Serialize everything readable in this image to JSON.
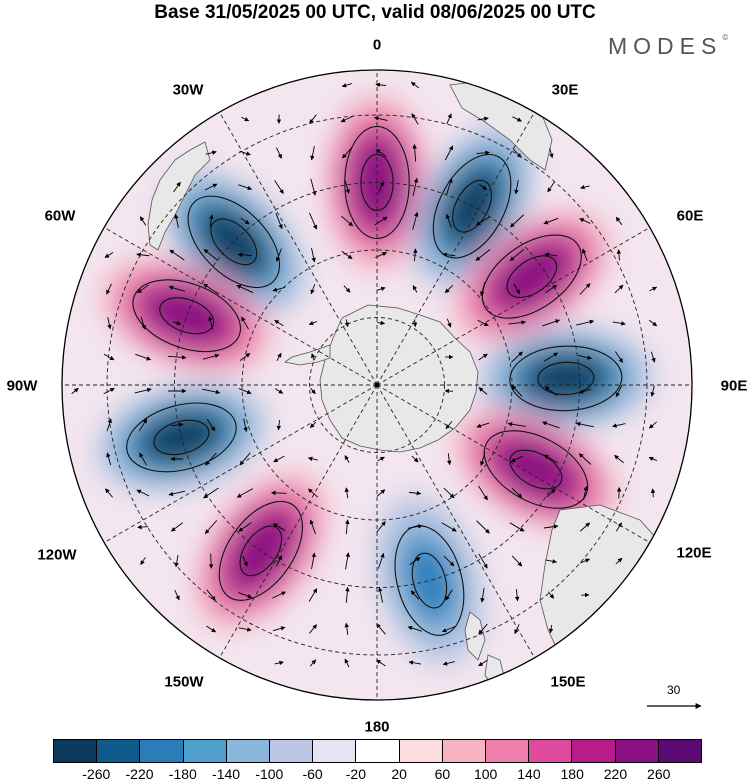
{
  "title": "Base 31/05/2025 00 UTC, valid 08/06/2025 00 UTC",
  "logo": {
    "text": "MODES",
    "mark": "©"
  },
  "map": {
    "projection": "south-polar-stereographic",
    "longitude_labels": {
      "lon_0": "0",
      "lon_30e": "30E",
      "lon_60e": "60E",
      "lon_90e": "90E",
      "lon_120e": "120E",
      "lon_150e": "150E",
      "lon_180": "180",
      "lon_150w": "150W",
      "lon_120w": "120W",
      "lon_90w": "90W",
      "lon_60w": "60W",
      "lon_30w": "30W"
    },
    "anomaly_centers": [
      {
        "name": "negative-center-315",
        "lon": -45,
        "lat": -45,
        "value": -260
      },
      {
        "name": "positive-center-0",
        "lon": 0,
        "lat": -45,
        "value": 260
      },
      {
        "name": "negative-center-30",
        "lon": 28,
        "lat": -45,
        "value": -260
      },
      {
        "name": "positive-center-55",
        "lon": 55,
        "lat": -48,
        "value": 260
      },
      {
        "name": "negative-center-85",
        "lon": 88,
        "lat": -48,
        "value": -260
      },
      {
        "name": "positive-center-120",
        "lon": 118,
        "lat": -50,
        "value": 260
      },
      {
        "name": "negative-center-165",
        "lon": 165,
        "lat": -45,
        "value": -180
      },
      {
        "name": "positive-center-215",
        "lon": -145,
        "lat": -45,
        "value": 260
      },
      {
        "name": "negative-center-255",
        "lon": -105,
        "lat": -45,
        "value": -260
      },
      {
        "name": "positive-center-290",
        "lon": -70,
        "lat": -45,
        "value": 260
      }
    ],
    "colors": {
      "land": "#e8e8e8",
      "graticule": "#222222"
    }
  },
  "colorbar": {
    "colors": [
      "#0b3a5c",
      "#0f5a8a",
      "#2a7db8",
      "#4f9fcc",
      "#8bb7dc",
      "#bcc6e4",
      "#e6e3f2",
      "#ffffff",
      "#fbdde0",
      "#f6b4c3",
      "#ef80ad",
      "#de4a9c",
      "#b81c8a",
      "#8a0f82",
      "#5a0a72"
    ],
    "tick_labels": [
      "-260",
      "-220",
      "-180",
      "-140",
      "-100",
      "-60",
      "-20",
      "20",
      "60",
      "100",
      "140",
      "180",
      "220",
      "260"
    ]
  },
  "reference_vector": {
    "value": "30"
  }
}
